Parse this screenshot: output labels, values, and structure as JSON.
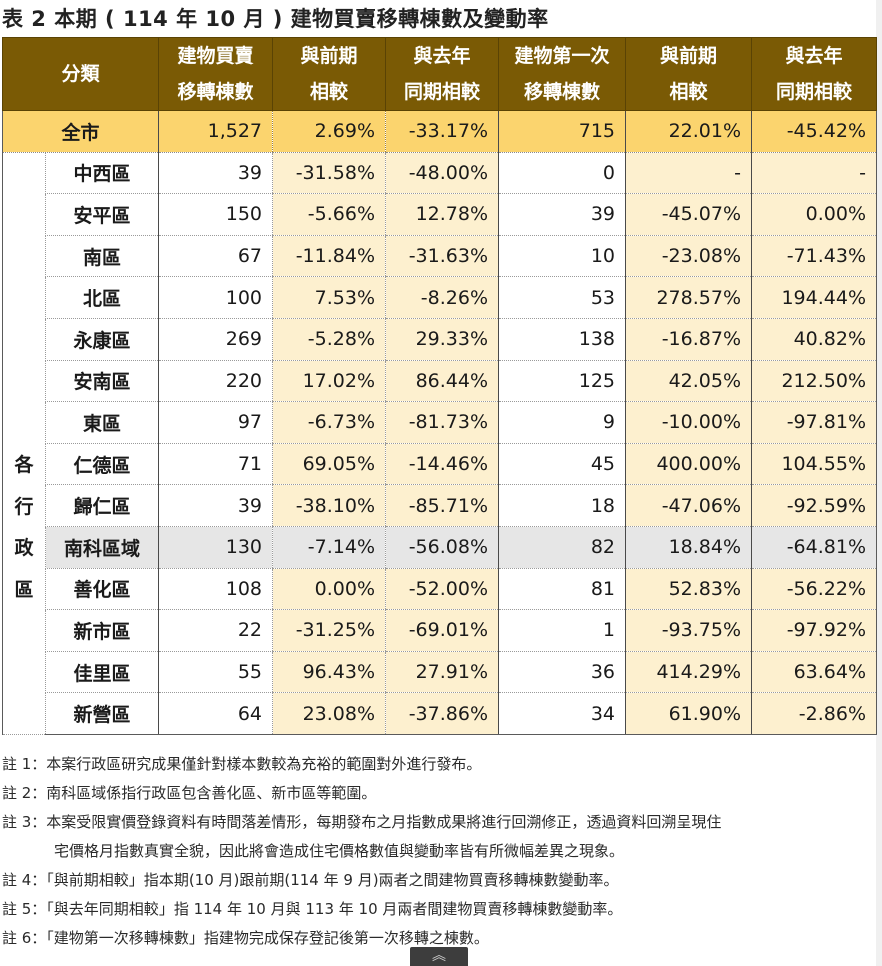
{
  "title": "表 2 本期 ( 114 年 10 月 ) 建物買賣移轉棟數及變動率",
  "table": {
    "headers": {
      "category": "分類",
      "col1": [
        "建物買賣",
        "移轉棟數"
      ],
      "col2": [
        "與前期",
        "相較"
      ],
      "col3": [
        "與去年",
        "同期相較"
      ],
      "col4": [
        "建物第一次",
        "移轉棟數"
      ],
      "col5": [
        "與前期",
        "相較"
      ],
      "col6": [
        "與去年",
        "同期相較"
      ]
    },
    "total": {
      "label": "全市",
      "values": [
        "1,527",
        "2.69%",
        "-33.17%",
        "715",
        "22.01%",
        "-45.42%"
      ]
    },
    "group_label": [
      "各",
      "行",
      "政",
      "區"
    ],
    "rows": [
      {
        "name": "中西區",
        "values": [
          "39",
          "-31.58%",
          "-48.00%",
          "0",
          "-",
          "-"
        ]
      },
      {
        "name": "安平區",
        "values": [
          "150",
          "-5.66%",
          "12.78%",
          "39",
          "-45.07%",
          "0.00%"
        ]
      },
      {
        "name": "南區",
        "values": [
          "67",
          "-11.84%",
          "-31.63%",
          "10",
          "-23.08%",
          "-71.43%"
        ]
      },
      {
        "name": "北區",
        "values": [
          "100",
          "7.53%",
          "-8.26%",
          "53",
          "278.57%",
          "194.44%"
        ]
      },
      {
        "name": "永康區",
        "values": [
          "269",
          "-5.28%",
          "29.33%",
          "138",
          "-16.87%",
          "40.82%"
        ]
      },
      {
        "name": "安南區",
        "values": [
          "220",
          "17.02%",
          "86.44%",
          "125",
          "42.05%",
          "212.50%"
        ]
      },
      {
        "name": "東區",
        "values": [
          "97",
          "-6.73%",
          "-81.73%",
          "9",
          "-10.00%",
          "-97.81%"
        ]
      },
      {
        "name": "仁德區",
        "values": [
          "71",
          "69.05%",
          "-14.46%",
          "45",
          "400.00%",
          "104.55%"
        ]
      },
      {
        "name": "歸仁區",
        "values": [
          "39",
          "-38.10%",
          "-85.71%",
          "18",
          "-47.06%",
          "-92.59%"
        ]
      },
      {
        "name": "南科區域",
        "values": [
          "130",
          "-7.14%",
          "-56.08%",
          "82",
          "18.84%",
          "-64.81%"
        ],
        "highlight": true
      },
      {
        "name": "善化區",
        "values": [
          "108",
          "0.00%",
          "-52.00%",
          "81",
          "52.83%",
          "-56.22%"
        ]
      },
      {
        "name": "新市區",
        "values": [
          "22",
          "-31.25%",
          "-69.01%",
          "1",
          "-93.75%",
          "-97.92%"
        ]
      },
      {
        "name": "佳里區",
        "values": [
          "55",
          "96.43%",
          "27.91%",
          "36",
          "414.29%",
          "63.64%"
        ]
      },
      {
        "name": "新營區",
        "values": [
          "64",
          "23.08%",
          "-37.86%",
          "34",
          "61.90%",
          "-2.86%"
        ]
      }
    ]
  },
  "notes": [
    "註 1：本案行政區研究成果僅針對樣本數較為充裕的範圍對外進行發布。",
    "註 2：南科區域係指行政區包含善化區、新市區等範圍。",
    "註 3：本案受限實價登錄資料有時間落差情形，每期發布之月指數成果將進行回溯修正，透過資料回溯呈現住",
    "宅價格月指數真實全貌，因此將會造成住宅價格數值與變動率皆有所微幅差異之現象。",
    "註 4：「與前期相較」指本期(10 月)跟前期(114 年 9 月)兩者之間建物買賣移轉棟數變動率。",
    "註 5：「與去年同期相較」指 114 年 10 月與 113 年 10 月兩者間建物買賣移轉棟數變動率。",
    "註 6：「建物第一次移轉棟數」指建物完成保存登記後第一次移轉之棟數。"
  ],
  "scroll_top": {
    "icon": "︽"
  },
  "colors": {
    "header_bg": "#7a5a05",
    "total_bg": "#fbd46e",
    "pct_bg": "#fdf0cf",
    "highlight_bg": "#e6e6e6"
  }
}
